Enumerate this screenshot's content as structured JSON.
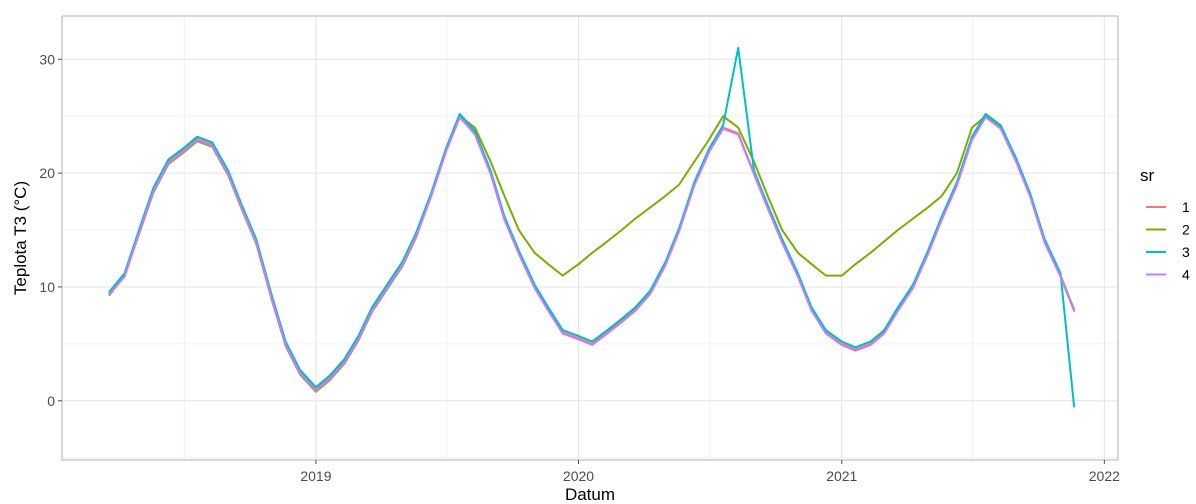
{
  "chart_data": {
    "type": "line",
    "title": "",
    "xlabel": "Datum",
    "ylabel": "Teplota T3 (°C)",
    "x_axis_type": "date",
    "xlim": [
      "2018-01-13",
      "2022-01-20"
    ],
    "ylim": [
      -5.2,
      33.8
    ],
    "x_ticks": [
      {
        "date": "2019-01-01",
        "label": "2019"
      },
      {
        "date": "2020-01-01",
        "label": "2020"
      },
      {
        "date": "2021-01-01",
        "label": "2021"
      },
      {
        "date": "2022-01-01",
        "label": "2022"
      }
    ],
    "y_ticks": [
      0,
      10,
      20,
      30
    ],
    "grid": true,
    "legend": {
      "title": "sr",
      "position": "right"
    },
    "series_colors": [
      "#F8766D",
      "#7CAE00",
      "#00BFC4",
      "#C77CFF"
    ],
    "series": [
      {
        "name": "1",
        "x": [
          "2018-03-20",
          "2018-04-10",
          "2018-05-01",
          "2018-05-20",
          "2018-06-10",
          "2018-07-01",
          "2018-07-20",
          "2018-08-10",
          "2018-09-01",
          "2018-09-20",
          "2018-10-10",
          "2018-11-01",
          "2018-11-20",
          "2018-12-10",
          "2019-01-01",
          "2019-01-20",
          "2019-02-10",
          "2019-03-01",
          "2019-03-20",
          "2019-04-10",
          "2019-05-01",
          "2019-05-20",
          "2019-06-10",
          "2019-07-01",
          "2019-07-20",
          "2019-08-10",
          "2019-09-01",
          "2019-09-20",
          "2019-10-10",
          "2019-11-01",
          "2019-11-20",
          "2019-12-10",
          "2020-01-01",
          "2020-01-20",
          "2020-02-10",
          "2020-03-01",
          "2020-03-20",
          "2020-04-10",
          "2020-05-01",
          "2020-05-20",
          "2020-06-10",
          "2020-07-01",
          "2020-07-20",
          "2020-08-10",
          "2020-09-01",
          "2020-09-20",
          "2020-10-10",
          "2020-11-01",
          "2020-11-20",
          "2020-12-10",
          "2021-01-01",
          "2021-01-20",
          "2021-02-10",
          "2021-03-01",
          "2021-03-20",
          "2021-04-10",
          "2021-05-01",
          "2021-05-20",
          "2021-06-10",
          "2021-07-01",
          "2021-07-20",
          "2021-08-10",
          "2021-09-01",
          "2021-09-20",
          "2021-10-10",
          "2021-11-01",
          "2021-11-20"
        ],
        "values": [
          9.5,
          11,
          15,
          18.5,
          21,
          22,
          23,
          22.5,
          20,
          17,
          14,
          9,
          5,
          2.5,
          1,
          2,
          3.5,
          5.5,
          8,
          10,
          12,
          14.5,
          18,
          22,
          25,
          23.5,
          20,
          16,
          13,
          10,
          8,
          6,
          5.5,
          5,
          6,
          7,
          8,
          9.5,
          12,
          15,
          19,
          22,
          24,
          23.5,
          20,
          17,
          14,
          11,
          8,
          6,
          5,
          4.5,
          5,
          6,
          8,
          10,
          13,
          16,
          19,
          23,
          25,
          24,
          21,
          18,
          14,
          11,
          8
        ]
      },
      {
        "name": "2",
        "x": [
          "2018-03-20",
          "2018-04-10",
          "2018-05-01",
          "2018-05-20",
          "2018-06-10",
          "2018-07-01",
          "2018-07-20",
          "2018-08-10",
          "2018-09-01",
          "2018-09-20",
          "2018-10-10",
          "2018-11-01",
          "2018-11-20",
          "2018-12-10",
          "2019-01-01",
          "2019-01-20",
          "2019-02-10",
          "2019-03-01",
          "2019-03-20",
          "2019-04-10",
          "2019-05-01",
          "2019-05-20",
          "2019-06-10",
          "2019-07-01",
          "2019-07-20",
          "2019-08-10",
          "2019-09-01",
          "2019-09-20",
          "2019-10-10",
          "2019-11-01",
          "2019-11-20",
          "2019-12-10",
          "2020-01-01",
          "2020-01-20",
          "2020-02-10",
          "2020-03-01",
          "2020-03-20",
          "2020-04-10",
          "2020-05-01",
          "2020-05-20",
          "2020-06-10",
          "2020-07-01",
          "2020-07-20",
          "2020-08-10",
          "2020-09-01",
          "2020-09-20",
          "2020-10-10",
          "2020-11-01",
          "2020-11-20",
          "2020-12-10",
          "2021-01-01",
          "2021-01-20",
          "2021-02-10",
          "2021-03-01",
          "2021-03-20",
          "2021-04-10",
          "2021-05-01",
          "2021-05-20",
          "2021-06-10",
          "2021-07-01",
          "2021-07-20",
          "2021-08-10",
          "2021-09-01",
          "2021-09-20",
          "2021-10-10",
          "2021-11-01",
          "2021-11-20"
        ],
        "values": [
          9.3,
          11,
          14.8,
          18.3,
          20.8,
          21.8,
          22.8,
          22.3,
          19.8,
          16.8,
          13.8,
          8.8,
          4.8,
          2.3,
          0.8,
          1.8,
          3.3,
          5.3,
          7.8,
          9.8,
          11.8,
          14.3,
          18,
          22,
          25,
          24,
          21,
          18,
          15,
          13,
          12,
          11,
          12,
          13,
          14,
          15,
          16,
          17,
          18,
          19,
          21,
          23,
          25,
          24,
          21,
          18,
          15,
          13,
          12,
          11,
          11,
          12,
          13,
          14,
          15,
          16,
          17,
          18,
          20,
          24,
          25,
          24,
          21,
          18,
          14,
          11,
          8
        ]
      },
      {
        "name": "3",
        "x": [
          "2018-03-20",
          "2018-04-10",
          "2018-05-01",
          "2018-05-20",
          "2018-06-10",
          "2018-07-01",
          "2018-07-20",
          "2018-08-10",
          "2018-09-01",
          "2018-09-20",
          "2018-10-10",
          "2018-11-01",
          "2018-11-20",
          "2018-12-10",
          "2019-01-01",
          "2019-01-20",
          "2019-02-10",
          "2019-03-01",
          "2019-03-20",
          "2019-04-10",
          "2019-05-01",
          "2019-05-20",
          "2019-06-10",
          "2019-07-01",
          "2019-07-20",
          "2019-08-10",
          "2019-09-01",
          "2019-09-20",
          "2019-10-10",
          "2019-11-01",
          "2019-11-20",
          "2019-12-10",
          "2020-01-01",
          "2020-01-20",
          "2020-02-10",
          "2020-03-01",
          "2020-03-20",
          "2020-04-10",
          "2020-05-01",
          "2020-05-20",
          "2020-06-10",
          "2020-07-01",
          "2020-07-20",
          "2020-08-10",
          "2020-09-01",
          "2020-09-20",
          "2020-10-10",
          "2020-11-01",
          "2020-11-20",
          "2020-12-10",
          "2021-01-01",
          "2021-01-20",
          "2021-02-10",
          "2021-03-01",
          "2021-03-20",
          "2021-04-10",
          "2021-05-01",
          "2021-05-20",
          "2021-06-10",
          "2021-07-01",
          "2021-07-20",
          "2021-08-10",
          "2021-09-01",
          "2021-09-20",
          "2021-10-10",
          "2021-11-01",
          "2021-11-20"
        ],
        "values": [
          9.6,
          11.2,
          15.2,
          18.7,
          21.2,
          22.2,
          23.2,
          22.7,
          20.2,
          17.2,
          14.2,
          9.2,
          5.2,
          2.7,
          1.2,
          2.2,
          3.7,
          5.7,
          8.2,
          10.2,
          12.2,
          14.7,
          18.2,
          22.2,
          25.2,
          23.7,
          20.2,
          16.2,
          13.2,
          10.2,
          8.2,
          6.2,
          5.7,
          5.2,
          6.2,
          7.2,
          8.2,
          9.7,
          12.2,
          15.2,
          19.2,
          22.2,
          24.2,
          31,
          20.2,
          17.2,
          14.2,
          11.2,
          8.2,
          6.2,
          5.2,
          4.7,
          5.2,
          6.2,
          8.2,
          10.2,
          13.2,
          16.2,
          19.2,
          23.2,
          25.2,
          24.2,
          21.2,
          18.2,
          14.2,
          11.2,
          -0.5
        ]
      },
      {
        "name": "4",
        "x": [
          "2018-03-20",
          "2018-04-10",
          "2018-05-01",
          "2018-05-20",
          "2018-06-10",
          "2018-07-01",
          "2018-07-20",
          "2018-08-10",
          "2018-09-01",
          "2018-09-20",
          "2018-10-10",
          "2018-11-01",
          "2018-11-20",
          "2018-12-10",
          "2019-01-01",
          "2019-01-20",
          "2019-02-10",
          "2019-03-01",
          "2019-03-20",
          "2019-04-10",
          "2019-05-01",
          "2019-05-20",
          "2019-06-10",
          "2019-07-01",
          "2019-07-20",
          "2019-08-10",
          "2019-09-01",
          "2019-09-20",
          "2019-10-10",
          "2019-11-01",
          "2019-11-20",
          "2019-12-10",
          "2020-01-01",
          "2020-01-20",
          "2020-02-10",
          "2020-03-01",
          "2020-03-20",
          "2020-04-10",
          "2020-05-01",
          "2020-05-20",
          "2020-06-10",
          "2020-07-01",
          "2020-07-20",
          "2020-08-10",
          "2020-09-01",
          "2020-09-20",
          "2020-10-10",
          "2020-11-01",
          "2020-11-20",
          "2020-12-10",
          "2021-01-01",
          "2021-01-20",
          "2021-02-10",
          "2021-03-01",
          "2021-03-20",
          "2021-04-10",
          "2021-05-01",
          "2021-05-20",
          "2021-06-10",
          "2021-07-01",
          "2021-07-20",
          "2021-08-10",
          "2021-09-01",
          "2021-09-20",
          "2021-10-10",
          "2021-11-01",
          "2021-11-20"
        ],
        "values": [
          9.4,
          10.9,
          14.9,
          18.4,
          20.9,
          21.9,
          22.9,
          22.4,
          19.9,
          16.9,
          13.9,
          8.9,
          4.9,
          2.4,
          0.9,
          1.9,
          3.4,
          5.4,
          7.9,
          9.9,
          11.9,
          14.4,
          17.9,
          21.9,
          24.9,
          23.4,
          19.9,
          15.9,
          12.9,
          9.9,
          7.9,
          5.9,
          5.4,
          4.9,
          5.9,
          6.9,
          7.9,
          9.4,
          11.9,
          14.9,
          18.9,
          21.9,
          23.9,
          23.4,
          19.9,
          16.9,
          13.9,
          10.9,
          7.9,
          5.9,
          4.9,
          4.4,
          4.9,
          5.9,
          7.9,
          9.9,
          12.9,
          15.9,
          18.9,
          22.9,
          24.9,
          23.9,
          20.9,
          17.9,
          13.9,
          10.9,
          7.9
        ]
      }
    ]
  }
}
